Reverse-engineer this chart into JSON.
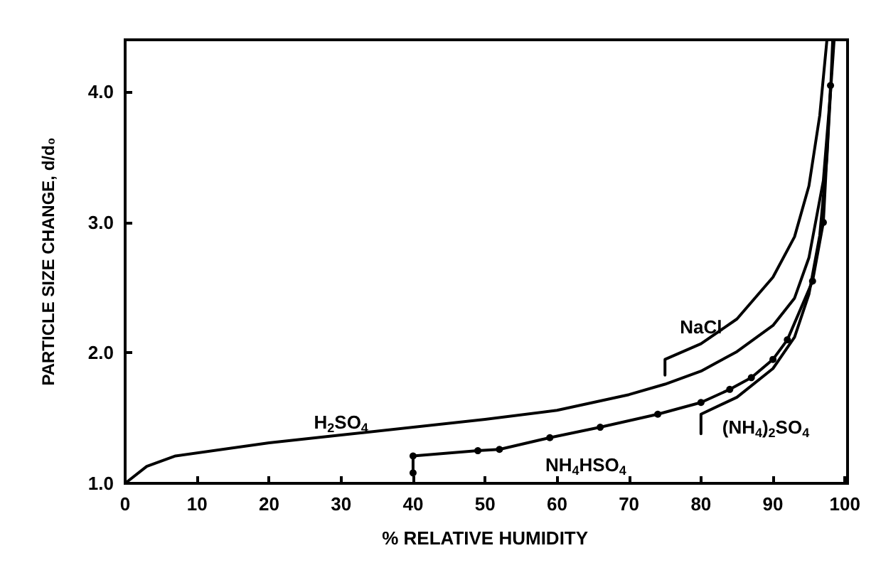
{
  "chart_data": {
    "type": "line",
    "xlabel": "% RELATIVE HUMIDITY",
    "ylabel": "PARTICLE SIZE CHANGE, d/d₀",
    "xlim": [
      0,
      100
    ],
    "ylim": [
      1,
      4.4
    ],
    "xticks": [
      0,
      10,
      20,
      30,
      40,
      50,
      60,
      70,
      80,
      90,
      100
    ],
    "yticks": [
      {
        "value": 1,
        "label": "1.0"
      },
      {
        "value": 2,
        "label": "2.0"
      },
      {
        "value": 3,
        "label": "3.0"
      },
      {
        "value": 4,
        "label": "4.0"
      }
    ],
    "grid": false,
    "line_style": "solid",
    "series": [
      {
        "color": "#000000",
        "marker": "none",
        "x": [
          0,
          3,
          7,
          20,
          30,
          50,
          60,
          70,
          75,
          80,
          85,
          90,
          93,
          95,
          97,
          98,
          98.5
        ],
        "values": [
          1.0,
          1.13,
          1.21,
          1.31,
          1.37,
          1.49,
          1.56,
          1.68,
          1.76,
          1.86,
          2.01,
          2.21,
          2.42,
          2.73,
          3.32,
          4.0,
          4.4
        ]
      },
      {
        "color": "#000000",
        "marker": "none",
        "x": [
          75,
          75,
          80,
          85,
          90,
          93,
          95,
          96.5,
          97.5
        ],
        "values": [
          1.83,
          1.95,
          2.07,
          2.26,
          2.58,
          2.89,
          3.28,
          3.82,
          4.4
        ]
      },
      {
        "color": "#000000",
        "marker": "circle",
        "x": [
          40,
          40,
          49,
          52,
          59,
          66,
          74,
          80,
          84,
          87,
          90,
          92,
          95.5,
          97,
          98
        ],
        "values": [
          1.08,
          1.21,
          1.25,
          1.26,
          1.35,
          1.43,
          1.53,
          1.62,
          1.72,
          1.81,
          1.95,
          2.1,
          2.55,
          3.0,
          4.05
        ]
      },
      {
        "color": "#000000",
        "marker": "none",
        "x": [
          80,
          80,
          85,
          90,
          93,
          95,
          96.5,
          97.5,
          98,
          98.3
        ],
        "values": [
          1.38,
          1.53,
          1.66,
          1.88,
          2.12,
          2.45,
          2.9,
          3.5,
          4.0,
          4.4
        ]
      }
    ],
    "annotations": [
      "H$_{2}$SO$_{4}$",
      "NaCl",
      "NH$_{4}$HSO$_{4}$",
      "(NH$_{4}$)$_{2}$SO$_{4}$"
    ]
  }
}
